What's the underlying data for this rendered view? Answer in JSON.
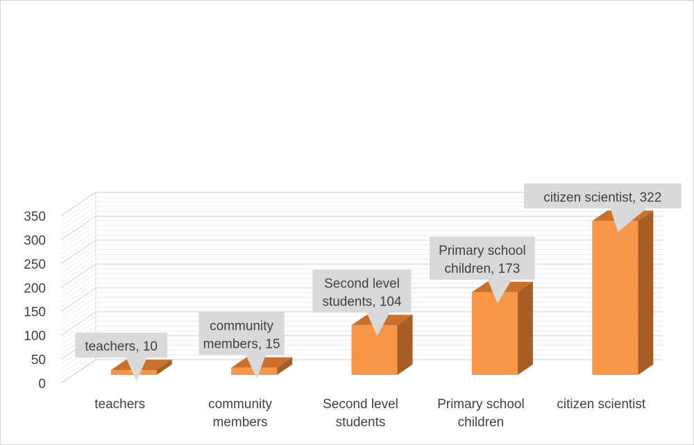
{
  "chart_data": {
    "type": "bar",
    "style": "3d-column",
    "title": "",
    "xlabel": "",
    "ylabel": "",
    "ylim": [
      0,
      350
    ],
    "y_ticks": [
      0,
      50,
      100,
      150,
      200,
      250,
      300,
      350
    ],
    "y_tick_labels": [
      "0",
      "50",
      "100",
      "150",
      "200",
      "250",
      "300",
      "350"
    ],
    "minor_gridlines": true,
    "categories": [
      [
        "teachers"
      ],
      [
        "community",
        "members"
      ],
      [
        "Second level",
        "students"
      ],
      [
        "Primary school",
        "children"
      ],
      [
        "citizen scientist"
      ]
    ],
    "values": [
      10,
      15,
      104,
      173,
      322
    ],
    "data_labels": [
      [
        "teachers, 10"
      ],
      [
        "community",
        "members, 15"
      ],
      [
        "Second level",
        "students, 104"
      ],
      [
        "Primary school",
        "children, 173"
      ],
      [
        "citizen scientist, 322"
      ]
    ],
    "colors": {
      "bar_front": "#F79646",
      "bar_side": "#A65E24",
      "bar_top": "#C8702C",
      "gridline": "#D9D9D9",
      "callout_bg": "#D9D9D9",
      "text": "#404040"
    }
  }
}
